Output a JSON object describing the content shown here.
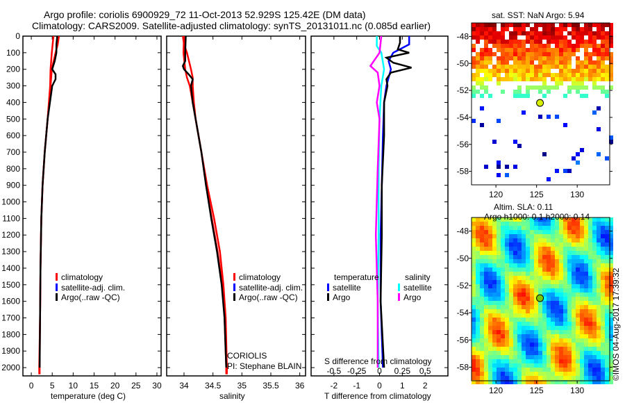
{
  "title_line1": "Argo profile: coriolis 6900929_72 11-Oct-2013 52.929S 125.42E (DM data)",
  "title_line2": "Climatology: CARS2009. Satellite-adjusted climatology: synTS_20131011.nc (0.085d earlier)",
  "credit": "©IMOS 04-Aug-2017 17:39:32",
  "colors": {
    "climatology": "#ff0000",
    "satellite": "#0000ff",
    "argo": "#000000",
    "sal_satellite": "#00ffff",
    "sal_argo": "#ff00ff"
  },
  "chart_data": [
    {
      "type": "line",
      "id": "temperature",
      "xlabel": "temperature (deg C)",
      "ylabel": "",
      "xlim": [
        -2,
        31
      ],
      "ylim": [
        2050,
        0
      ],
      "xticks": [
        "0",
        "5",
        "10",
        "15",
        "20",
        "25",
        "30"
      ],
      "yticks": [
        "0",
        "100",
        "200",
        "300",
        "400",
        "500",
        "600",
        "700",
        "800",
        "900",
        "1000",
        "1100",
        "1200",
        "1300",
        "1400",
        "1500",
        "1600",
        "1700",
        "1800",
        "1900",
        "2000"
      ],
      "legend": [
        "climatology",
        "satellite-adj. clim.",
        "Argo(..raw -QC)"
      ],
      "series": [
        {
          "name": "climatology",
          "depth": [
            0,
            100,
            200,
            300,
            500,
            700,
            900,
            1100,
            1400,
            1700,
            2000,
            2040
          ],
          "values": [
            5.3,
            4.9,
            4.6,
            4.5,
            3.9,
            3.2,
            2.7,
            2.4,
            2.2,
            2.1,
            1.9,
            1.9
          ]
        },
        {
          "name": "satellite-adj. clim.",
          "depth": [
            0,
            50,
            100,
            200,
            300,
            500,
            700,
            900,
            1100,
            1400,
            1700,
            2000,
            2040
          ],
          "values": [
            6.6,
            6.3,
            5.8,
            4.9,
            4.6,
            3.9,
            3.2,
            2.7,
            2.4,
            2.2,
            2.1,
            2.0,
            2.0
          ]
        },
        {
          "name": "Argo(..raw -QC)",
          "depth": [
            0,
            50,
            100,
            150,
            200,
            230,
            260,
            300,
            500,
            700,
            900,
            1100,
            1400,
            1700,
            2000
          ],
          "values": [
            6.2,
            6.0,
            6.0,
            5.6,
            5.0,
            5.8,
            5.8,
            5.0,
            3.9,
            3.2,
            2.7,
            2.4,
            2.2,
            2.1,
            2.0
          ]
        }
      ]
    },
    {
      "type": "line",
      "id": "salinity",
      "xlabel": "salinity",
      "xlim": [
        33.7,
        36.1
      ],
      "ylim": [
        2050,
        0
      ],
      "xticks": [
        "34",
        "34.5",
        "35",
        "35.5",
        "36"
      ],
      "legend": [
        "climatology",
        "satellite-adj. clim.",
        "Argo(..raw -QC)"
      ],
      "annotations": [
        "CORIOLIS",
        "PI: Stephane BLAIN"
      ],
      "series": [
        {
          "name": "climatology",
          "depth": [
            0,
            100,
            200,
            250,
            300,
            400,
            500,
            700,
            900,
            1100,
            1300,
            1500,
            1700,
            2000,
            2040
          ],
          "values": [
            34.0,
            33.99,
            34.02,
            34.05,
            34.1,
            34.15,
            34.2,
            34.3,
            34.4,
            34.52,
            34.62,
            34.68,
            34.72,
            34.74,
            34.74
          ]
        },
        {
          "name": "satellite-adj. clim.",
          "depth": [
            0,
            50,
            100,
            200,
            250,
            300,
            400,
            500,
            700,
            900,
            1100,
            1300,
            1500,
            1700,
            2000,
            2040
          ],
          "values": [
            33.98,
            34.0,
            34.05,
            34.12,
            34.15,
            34.15,
            34.17,
            34.2,
            34.3,
            34.38,
            34.48,
            34.58,
            34.66,
            34.7,
            34.73,
            34.73
          ]
        },
        {
          "name": "Argo(..raw -QC)",
          "depth": [
            0,
            100,
            150,
            180,
            200,
            230,
            260,
            300,
            400,
            500,
            700,
            900,
            1100,
            1300,
            1500,
            1700,
            2000
          ],
          "values": [
            34.03,
            34.02,
            34.02,
            33.98,
            34.0,
            34.08,
            34.15,
            34.12,
            34.15,
            34.2,
            34.3,
            34.38,
            34.47,
            34.57,
            34.65,
            34.7,
            34.73
          ]
        }
      ]
    },
    {
      "type": "line",
      "id": "difference",
      "xlabel": "T difference from climatology",
      "x2label": "S difference from climatology",
      "xlim": [
        -3,
        3
      ],
      "ylim": [
        2050,
        0
      ],
      "xticks": [
        "-2",
        "-1",
        "0",
        "1",
        "2"
      ],
      "x2ticks": [
        "-0.5",
        "-0.25",
        "0",
        "0.25",
        "0.5"
      ],
      "legend_headers": [
        "temperature",
        "salinity"
      ],
      "legend": [
        "satellite",
        "Argo",
        "satellite",
        "Argo"
      ],
      "series": [
        {
          "name": "T satellite",
          "units": "degC",
          "depth": [
            0,
            50,
            100,
            150,
            200,
            300,
            400,
            600,
            900,
            1200,
            1600,
            2000
          ],
          "values": [
            1.3,
            1.3,
            0.6,
            0.4,
            0.5,
            0.3,
            0.2,
            0.15,
            0.1,
            0.05,
            0.05,
            0.15
          ]
        },
        {
          "name": "T Argo",
          "units": "degC",
          "depth": [
            0,
            40,
            80,
            100,
            130,
            160,
            190,
            220,
            260,
            300,
            400,
            600,
            900,
            1200,
            1600,
            2000
          ],
          "values": [
            0.9,
            0.9,
            0.8,
            1.3,
            0.3,
            0.6,
            1.4,
            0.5,
            0.3,
            0.35,
            0.2,
            0.2,
            0.1,
            0.1,
            0.05,
            0.2
          ]
        },
        {
          "name": "S satellite",
          "units": "psu",
          "depth": [
            0,
            60,
            100,
            200,
            300,
            500,
            800,
            1200,
            1600,
            2000
          ],
          "values": [
            -0.03,
            -0.03,
            0.02,
            0.05,
            0.02,
            0.0,
            -0.01,
            -0.01,
            -0.02,
            -0.01
          ]
        },
        {
          "name": "S Argo",
          "units": "psu",
          "depth": [
            0,
            100,
            180,
            220,
            300,
            400,
            500,
            800,
            1200,
            1600,
            2000
          ],
          "values": [
            0.02,
            0.0,
            -0.1,
            -0.02,
            0.0,
            -0.03,
            0.0,
            -0.02,
            -0.04,
            -0.02,
            -0.02
          ]
        }
      ]
    }
  ],
  "sst_map": {
    "title": "sat. SST: NaN Argo: 5.94",
    "lon_ticks": [
      "120",
      "125",
      "130"
    ],
    "lat_ticks": [
      "-48",
      "-50",
      "-52",
      "-54",
      "-56",
      "-58"
    ],
    "lon_range": [
      117,
      134
    ],
    "lat_range": [
      -47,
      -59
    ],
    "argo_position": [
      125.42,
      -52.929
    ]
  },
  "sla_map": {
    "title_line1": "Altim. SLA: 0.11",
    "title_line2": "Argo h1000: 0.1 h2000: 0.14",
    "lon_ticks": [
      "120",
      "125",
      "130"
    ],
    "lat_ticks": [
      "-48",
      "-50",
      "-52",
      "-54",
      "-56",
      "-58"
    ],
    "lon_range": [
      117,
      134
    ],
    "lat_range": [
      -47,
      -59
    ],
    "argo_position": [
      125.42,
      -52.929
    ]
  }
}
